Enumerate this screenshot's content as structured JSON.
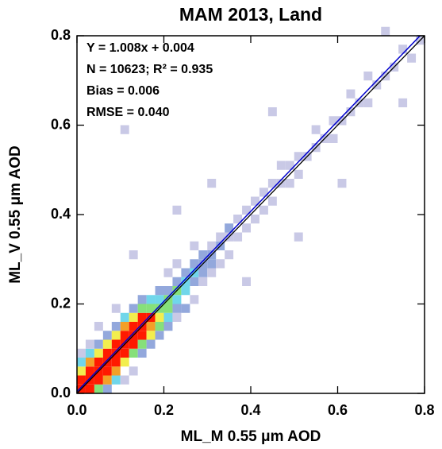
{
  "chart_data": {
    "type": "density",
    "title": "MAM 2013, Land",
    "xlabel": "ML_M 0.55 μm AOD",
    "ylabel": "ML_V 0.55 μm AOD",
    "annotations": [
      "Y = 1.008x + 0.004",
      "N = 10623; R² = 0.935",
      "Bias = 0.006",
      "RMSE = 0.040"
    ],
    "xlim": [
      0,
      0.8
    ],
    "ylim": [
      0,
      0.8
    ],
    "xticks": [
      {
        "value": 0,
        "label": "0.0"
      },
      0.2,
      0.4,
      0.6,
      0.8
    ],
    "yticks": [
      {
        "value": 0,
        "label": "0.0"
      },
      0.2,
      0.4,
      0.6,
      0.8
    ],
    "binwidth": 0.02,
    "colors": [
      "#c9c9e6",
      "#93a8dc",
      "#70d6ea",
      "#86e07a",
      "#f2ee4e",
      "#f3a028",
      "#ff1a00"
    ],
    "one_to_one": true,
    "one_to_one_color": "#000000",
    "fit": {
      "slope": 1.008,
      "intercept": 0.004,
      "color": "#0000cc"
    },
    "cells": {
      "x": [
        0,
        0,
        0,
        0,
        0,
        0.02,
        0.02,
        0.02,
        0.02,
        0.02,
        0.02,
        0.04,
        0.04,
        0.04,
        0.04,
        0.04,
        0.04,
        0.04,
        0.06,
        0.06,
        0.06,
        0.06,
        0.06,
        0.06,
        0.06,
        0.08,
        0.08,
        0.08,
        0.08,
        0.08,
        0.08,
        0.08,
        0.08,
        0.1,
        0.1,
        0.1,
        0.1,
        0.1,
        0.1,
        0.1,
        0.12,
        0.12,
        0.12,
        0.12,
        0.12,
        0.12,
        0.12,
        0.14,
        0.14,
        0.14,
        0.14,
        0.14,
        0.14,
        0.14,
        0.16,
        0.16,
        0.16,
        0.16,
        0.16,
        0.16,
        0.18,
        0.18,
        0.18,
        0.18,
        0.18,
        0.18,
        0.2,
        0.2,
        0.2,
        0.2,
        0.2,
        0.2,
        0.22,
        0.22,
        0.22,
        0.22,
        0.22,
        0.22,
        0.24,
        0.24,
        0.24,
        0.24,
        0.26,
        0.26,
        0.26,
        0.26,
        0.26,
        0.28,
        0.28,
        0.28,
        0.28,
        0.3,
        0.3,
        0.3,
        0.3,
        0.32,
        0.32,
        0.32,
        0.34,
        0.34,
        0.34,
        0.36,
        0.36,
        0.38,
        0.38,
        0.4,
        0.4,
        0.42,
        0.42,
        0.44,
        0.44,
        0.46,
        0.46,
        0.48,
        0.48,
        0.5,
        0.5,
        0.52,
        0.54,
        0.54,
        0.56,
        0.58,
        0.58,
        0.6,
        0.62,
        0.62,
        0.64,
        0.66,
        0.66,
        0.68,
        0.7,
        0.72,
        0.74,
        0.76,
        0.78,
        0.1,
        0.44,
        0.3,
        0.22,
        0.6,
        0.5,
        0.38,
        0.12,
        0.7,
        0.74
      ],
      "y": [
        0,
        0.02,
        0.04,
        0.06,
        0.08,
        0,
        0.02,
        0.04,
        0.06,
        0.08,
        0.1,
        0,
        0.02,
        0.04,
        0.06,
        0.08,
        0.1,
        0.14,
        0,
        0.02,
        0.04,
        0.06,
        0.08,
        0.1,
        0.12,
        0.02,
        0.04,
        0.06,
        0.08,
        0.1,
        0.12,
        0.14,
        0.18,
        0.02,
        0.06,
        0.08,
        0.1,
        0.12,
        0.14,
        0.16,
        0.04,
        0.08,
        0.1,
        0.12,
        0.14,
        0.16,
        0.18,
        0.08,
        0.1,
        0.12,
        0.14,
        0.16,
        0.18,
        0.2,
        0.1,
        0.12,
        0.14,
        0.16,
        0.18,
        0.2,
        0.12,
        0.14,
        0.16,
        0.18,
        0.2,
        0.22,
        0.14,
        0.16,
        0.18,
        0.2,
        0.22,
        0.26,
        0.16,
        0.18,
        0.2,
        0.22,
        0.24,
        0.28,
        0.18,
        0.22,
        0.24,
        0.26,
        0.2,
        0.24,
        0.26,
        0.28,
        0.32,
        0.24,
        0.26,
        0.28,
        0.3,
        0.26,
        0.28,
        0.3,
        0.32,
        0.28,
        0.32,
        0.34,
        0.3,
        0.34,
        0.36,
        0.34,
        0.38,
        0.36,
        0.4,
        0.38,
        0.42,
        0.4,
        0.44,
        0.42,
        0.46,
        0.46,
        0.5,
        0.46,
        0.5,
        0.48,
        0.52,
        0.52,
        0.54,
        0.58,
        0.56,
        0.56,
        0.6,
        0.6,
        0.62,
        0.66,
        0.64,
        0.64,
        0.7,
        0.68,
        0.7,
        0.72,
        0.76,
        0.74,
        0.78,
        0.58,
        0.62,
        0.46,
        0.4,
        0.46,
        0.34,
        0.24,
        0.3,
        0.8,
        0.64
      ],
      "level": [
        6,
        6,
        4,
        2,
        0,
        6,
        6,
        6,
        5,
        2,
        0,
        3,
        6,
        6,
        6,
        4,
        1,
        0,
        1,
        5,
        6,
        6,
        6,
        4,
        1,
        2,
        5,
        6,
        6,
        6,
        4,
        1,
        0,
        0,
        4,
        6,
        6,
        6,
        5,
        2,
        0,
        3,
        6,
        6,
        6,
        4,
        1,
        1,
        3,
        6,
        6,
        6,
        3,
        1,
        1,
        4,
        5,
        6,
        3,
        2,
        1,
        3,
        4,
        3,
        2,
        1,
        1,
        2,
        3,
        3,
        1,
        0,
        0,
        1,
        2,
        3,
        1,
        0,
        1,
        2,
        2,
        1,
        0,
        1,
        2,
        1,
        0,
        0,
        1,
        1,
        1,
        0,
        1,
        1,
        0,
        0,
        1,
        0,
        0,
        0,
        1,
        0,
        0,
        0,
        0,
        0,
        0,
        0,
        0,
        0,
        0,
        0,
        0,
        0,
        0,
        0,
        0,
        0,
        0,
        0,
        0,
        0,
        0,
        0,
        0,
        0,
        0,
        0,
        0,
        0,
        0,
        0,
        0,
        0,
        0,
        0,
        0,
        0,
        0,
        0,
        0,
        0,
        0,
        0,
        0
      ]
    }
  }
}
